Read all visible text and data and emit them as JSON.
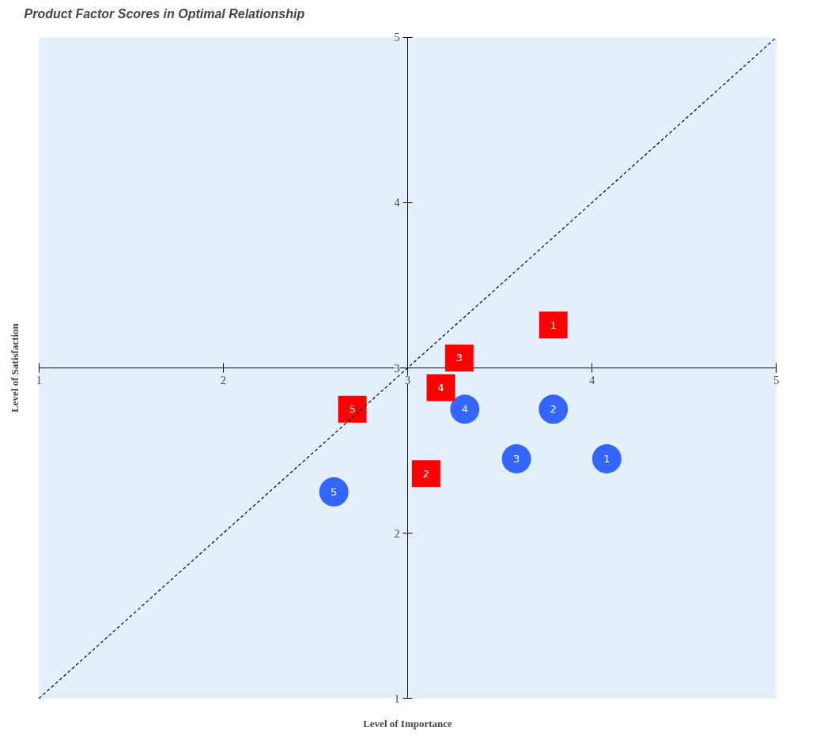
{
  "chart_data": {
    "type": "scatter",
    "title": "Product Factor Scores in Optimal Relationship",
    "xlabel": "Level of Importance",
    "ylabel": "Level of Satisfaction",
    "xlim": [
      1,
      5
    ],
    "ylim": [
      1,
      5
    ],
    "xticks": [
      1,
      2,
      3,
      4,
      5
    ],
    "yticks": [
      1,
      2,
      3,
      4,
      5
    ],
    "grid": false,
    "series": [
      {
        "type": "scatter",
        "marker": "circle",
        "color": "#3366ff",
        "x": [
          4.08,
          3.79,
          3.59,
          3.31,
          2.6
        ],
        "values": [
          2.45,
          2.75,
          2.45,
          2.75,
          2.25
        ]
      },
      {
        "type": "scatter",
        "marker": "square",
        "color": "#ff0000",
        "x": [
          3.79,
          3.1,
          3.28,
          3.18,
          2.7
        ],
        "values": [
          3.26,
          2.36,
          3.06,
          2.88,
          2.75
        ]
      },
      {
        "type": "line",
        "line_style": "dashed",
        "color": "#000000",
        "x": [
          1,
          5
        ],
        "values": [
          1,
          5
        ]
      }
    ],
    "annotations": [
      {
        "text": "1",
        "x": 4.08,
        "y": 2.45
      },
      {
        "text": "2",
        "x": 3.79,
        "y": 2.75
      },
      {
        "text": "3",
        "x": 3.59,
        "y": 2.45
      },
      {
        "text": "4",
        "x": 3.31,
        "y": 2.75
      },
      {
        "text": "5",
        "x": 2.6,
        "y": 2.25
      },
      {
        "text": "1",
        "x": 3.79,
        "y": 3.26
      },
      {
        "text": "2",
        "x": 3.1,
        "y": 2.36
      },
      {
        "text": "3",
        "x": 3.28,
        "y": 3.06
      },
      {
        "text": "4",
        "x": 3.18,
        "y": 2.88
      },
      {
        "text": "5",
        "x": 2.7,
        "y": 2.75
      }
    ]
  }
}
